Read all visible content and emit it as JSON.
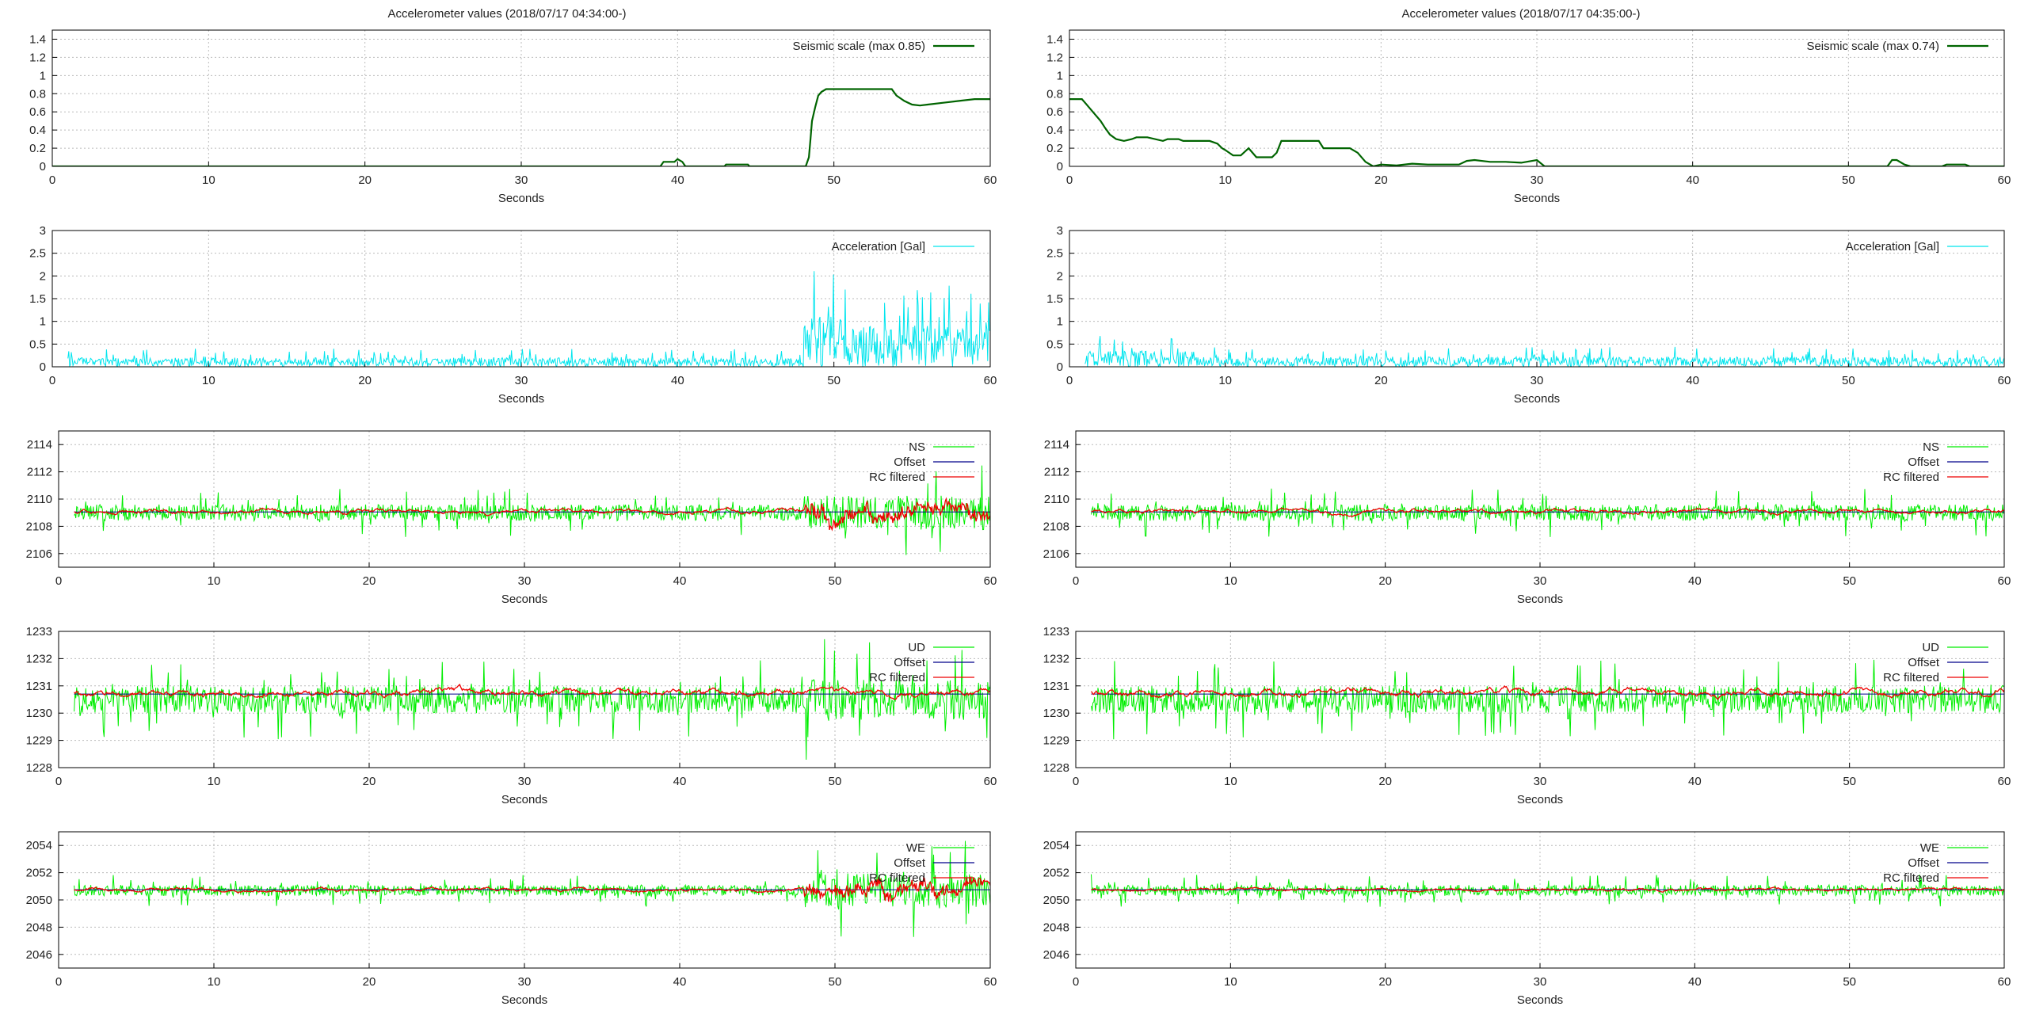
{
  "columns": [
    {
      "title": "Accelerometer values (2018/07/17 04:34:00-)"
    },
    {
      "title": "Accelerometer values (2018/07/17 04:35:00-)"
    }
  ],
  "chart_data": [
    {
      "type": "line",
      "column": 0,
      "panel": "seismic",
      "xlabel": "Seconds",
      "ylabel": "",
      "xlim": [
        0,
        60
      ],
      "ylim": [
        0,
        1.5
      ],
      "xticks": [
        "0",
        "10",
        "20",
        "30",
        "40",
        "50",
        "60"
      ],
      "yticks": [
        "0",
        "0.2",
        "0.4",
        "0.6",
        "0.8",
        "1",
        "1.2",
        "1.4"
      ],
      "grid": true,
      "legend_position": "top-right",
      "series": [
        {
          "name": "Seismic scale (max 0.85)",
          "color": "#006400",
          "x": [
            0,
            38.9,
            39.1,
            39.8,
            40,
            40.3,
            40.5,
            43,
            43.1,
            44.5,
            44.6,
            48.2,
            48.4,
            48.5,
            48.6,
            48.8,
            49,
            49.2,
            49.5,
            50,
            53.7,
            54,
            54.5,
            55,
            55.5,
            56,
            57,
            58,
            59,
            60
          ],
          "y": [
            0,
            0,
            0.05,
            0.05,
            0.08,
            0.05,
            0,
            0,
            0.02,
            0.02,
            0,
            0,
            0.1,
            0.3,
            0.5,
            0.65,
            0.78,
            0.82,
            0.85,
            0.85,
            0.85,
            0.78,
            0.72,
            0.68,
            0.67,
            0.68,
            0.7,
            0.72,
            0.74,
            0.74
          ]
        }
      ]
    },
    {
      "type": "line",
      "column": 0,
      "panel": "acceleration",
      "xlabel": "Seconds",
      "ylabel": "",
      "xlim": [
        0,
        60
      ],
      "ylim": [
        0,
        3
      ],
      "xticks": [
        "0",
        "10",
        "20",
        "30",
        "40",
        "50",
        "60"
      ],
      "yticks": [
        "0",
        "0.5",
        "1",
        "1.5",
        "2",
        "2.5",
        "3"
      ],
      "grid": true,
      "legend_position": "top-right",
      "series": [
        {
          "name": "Acceleration [Gal]",
          "color": "#00e5ee",
          "x_start": 1,
          "x_end": 60,
          "base": 0.15,
          "noise": 0.2,
          "seed": 11,
          "bursts": [
            {
              "from": 48,
              "to": 50.5,
              "amp": 1.1
            },
            {
              "from": 50.5,
              "to": 60,
              "amp": 0.9
            }
          ]
        }
      ]
    },
    {
      "type": "line",
      "column": 0,
      "panel": "NS",
      "xlabel": "Seconds",
      "ylabel": "",
      "xlim": [
        0,
        60
      ],
      "ylim": [
        2105,
        2115
      ],
      "xticks": [
        "0",
        "10",
        "20",
        "30",
        "40",
        "50",
        "60"
      ],
      "yticks": [
        "2106",
        "2108",
        "2110",
        "2112",
        "2114"
      ],
      "grid": true,
      "legend_position": "top-right",
      "series": [
        {
          "name": "NS",
          "color": "#00ee00",
          "x_start": 1,
          "x_end": 60,
          "base": 2109,
          "noise": 1.2,
          "seed": 21,
          "bursts": [
            {
              "from": 48,
              "to": 60,
              "amp": 2.5
            }
          ]
        },
        {
          "name": "Offset",
          "color": "#00008b",
          "constant": 2109.05
        },
        {
          "name": "RC filtered",
          "color": "#ee0000",
          "x_start": 1,
          "x_end": 60,
          "base": 2109.1,
          "noise": 0.25,
          "seed": 22,
          "bursts": [
            {
              "from": 48,
              "to": 60,
              "amp": 0.8
            }
          ]
        }
      ]
    },
    {
      "type": "line",
      "column": 0,
      "panel": "UD",
      "xlabel": "Seconds",
      "ylabel": "",
      "xlim": [
        0,
        60
      ],
      "ylim": [
        1228,
        1233
      ],
      "xticks": [
        "0",
        "10",
        "20",
        "30",
        "40",
        "50",
        "60"
      ],
      "yticks": [
        "1228",
        "1229",
        "1230",
        "1231",
        "1232",
        "1233"
      ],
      "grid": true,
      "legend_position": "top-right",
      "series": [
        {
          "name": "UD",
          "color": "#00ee00",
          "x_start": 1,
          "x_end": 60,
          "base": 1230.5,
          "noise": 1.0,
          "seed": 31,
          "bursts": [
            {
              "from": 48,
              "to": 60,
              "amp": 1.5
            }
          ]
        },
        {
          "name": "Offset",
          "color": "#00008b",
          "constant": 1230.7
        },
        {
          "name": "RC filtered",
          "color": "#ee0000",
          "x_start": 1,
          "x_end": 60,
          "base": 1230.75,
          "noise": 0.18,
          "seed": 32,
          "bursts": []
        }
      ]
    },
    {
      "type": "line",
      "column": 0,
      "panel": "WE",
      "xlabel": "Seconds",
      "ylabel": "",
      "xlim": [
        0,
        60
      ],
      "ylim": [
        2045,
        2055
      ],
      "xticks": [
        "0",
        "10",
        "20",
        "30",
        "40",
        "50",
        "60"
      ],
      "yticks": [
        "2046",
        "2048",
        "2050",
        "2052",
        "2054"
      ],
      "grid": true,
      "legend_position": "top-right",
      "series": [
        {
          "name": "WE",
          "color": "#00ee00",
          "x_start": 1,
          "x_end": 60,
          "base": 2050.7,
          "noise": 0.8,
          "seed": 41,
          "bursts": [
            {
              "from": 48,
              "to": 60,
              "amp": 2.5
            }
          ]
        },
        {
          "name": "Offset",
          "color": "#00008b",
          "constant": 2050.75
        },
        {
          "name": "RC filtered",
          "color": "#ee0000",
          "x_start": 1,
          "x_end": 60,
          "base": 2050.75,
          "noise": 0.2,
          "seed": 42,
          "bursts": [
            {
              "from": 48,
              "to": 60,
              "amp": 0.7
            }
          ]
        }
      ]
    },
    {
      "type": "line",
      "column": 1,
      "panel": "seismic",
      "xlabel": "Seconds",
      "ylabel": "",
      "xlim": [
        0,
        60
      ],
      "ylim": [
        0,
        1.5
      ],
      "xticks": [
        "0",
        "10",
        "20",
        "30",
        "40",
        "50",
        "60"
      ],
      "yticks": [
        "0",
        "0.2",
        "0.4",
        "0.6",
        "0.8",
        "1",
        "1.2",
        "1.4"
      ],
      "grid": true,
      "legend_position": "top-right",
      "series": [
        {
          "name": "Seismic scale (max 0.74)",
          "color": "#006400",
          "x": [
            0,
            0.8,
            1,
            1.5,
            2,
            2.3,
            2.6,
            3,
            3.5,
            4,
            4.3,
            5,
            6,
            6.3,
            7,
            7.3,
            8,
            9,
            9.5,
            9.8,
            10,
            10.5,
            11,
            11.5,
            12,
            13,
            13.3,
            13.6,
            16,
            16.3,
            18,
            18.5,
            19,
            19.5,
            20,
            21,
            22,
            23,
            25,
            25.5,
            26,
            27,
            28,
            29,
            30,
            30.5,
            52.5,
            52.8,
            53.1,
            53.6,
            54,
            56,
            56.3,
            57.5,
            57.8,
            60
          ],
          "y": [
            0.74,
            0.74,
            0.7,
            0.6,
            0.5,
            0.42,
            0.35,
            0.3,
            0.28,
            0.3,
            0.32,
            0.32,
            0.28,
            0.3,
            0.3,
            0.28,
            0.28,
            0.28,
            0.25,
            0.2,
            0.18,
            0.12,
            0.12,
            0.2,
            0.1,
            0.1,
            0.15,
            0.28,
            0.28,
            0.2,
            0.2,
            0.15,
            0.05,
            0,
            0.02,
            0.01,
            0.03,
            0.02,
            0.02,
            0.06,
            0.07,
            0.05,
            0.05,
            0.04,
            0.07,
            0,
            0,
            0.07,
            0.07,
            0.02,
            0,
            0,
            0.02,
            0.02,
            0,
            0
          ]
        }
      ]
    },
    {
      "type": "line",
      "column": 1,
      "panel": "acceleration",
      "xlabel": "Seconds",
      "ylabel": "",
      "xlim": [
        0,
        60
      ],
      "ylim": [
        0,
        3
      ],
      "xticks": [
        "0",
        "10",
        "20",
        "30",
        "40",
        "50",
        "60"
      ],
      "yticks": [
        "0",
        "0.5",
        "1",
        "1.5",
        "2",
        "2.5",
        "3"
      ],
      "grid": true,
      "legend_position": "top-right",
      "series": [
        {
          "name": "Acceleration [Gal]",
          "color": "#00e5ee",
          "x_start": 1,
          "x_end": 60,
          "base": 0.18,
          "noise": 0.22,
          "seed": 51,
          "bursts": [
            {
              "from": 1,
              "to": 8,
              "amp": 0.35
            }
          ]
        }
      ]
    },
    {
      "type": "line",
      "column": 1,
      "panel": "NS",
      "xlabel": "Seconds",
      "ylabel": "",
      "xlim": [
        0,
        60
      ],
      "ylim": [
        2105,
        2115
      ],
      "xticks": [
        "0",
        "10",
        "20",
        "30",
        "40",
        "50",
        "60"
      ],
      "yticks": [
        "2106",
        "2108",
        "2110",
        "2112",
        "2114"
      ],
      "grid": true,
      "legend_position": "top-right",
      "series": [
        {
          "name": "NS",
          "color": "#00ee00",
          "x_start": 1,
          "x_end": 60,
          "base": 2109,
          "noise": 1.2,
          "seed": 61,
          "bursts": []
        },
        {
          "name": "Offset",
          "color": "#00008b",
          "constant": 2109.05
        },
        {
          "name": "RC filtered",
          "color": "#ee0000",
          "x_start": 1,
          "x_end": 60,
          "base": 2109.1,
          "noise": 0.22,
          "seed": 62,
          "bursts": []
        }
      ]
    },
    {
      "type": "line",
      "column": 1,
      "panel": "UD",
      "xlabel": "Seconds",
      "ylabel": "",
      "xlim": [
        0,
        60
      ],
      "ylim": [
        1228,
        1233
      ],
      "xticks": [
        "0",
        "10",
        "20",
        "30",
        "40",
        "50",
        "60"
      ],
      "yticks": [
        "1228",
        "1229",
        "1230",
        "1231",
        "1232",
        "1233"
      ],
      "grid": true,
      "legend_position": "top-right",
      "series": [
        {
          "name": "UD",
          "color": "#00ee00",
          "x_start": 1,
          "x_end": 60,
          "base": 1230.5,
          "noise": 1.0,
          "seed": 71,
          "bursts": []
        },
        {
          "name": "Offset",
          "color": "#00008b",
          "constant": 1230.7
        },
        {
          "name": "RC filtered",
          "color": "#ee0000",
          "x_start": 1,
          "x_end": 60,
          "base": 1230.75,
          "noise": 0.18,
          "seed": 72,
          "bursts": []
        }
      ]
    },
    {
      "type": "line",
      "column": 1,
      "panel": "WE",
      "xlabel": "Seconds",
      "ylabel": "",
      "xlim": [
        0,
        60
      ],
      "ylim": [
        2045,
        2055
      ],
      "xticks": [
        "0",
        "10",
        "20",
        "30",
        "40",
        "50",
        "60"
      ],
      "yticks": [
        "2046",
        "2048",
        "2050",
        "2052",
        "2054"
      ],
      "grid": true,
      "legend_position": "top-right",
      "series": [
        {
          "name": "WE",
          "color": "#00ee00",
          "x_start": 1,
          "x_end": 60,
          "base": 2050.7,
          "noise": 0.8,
          "seed": 81,
          "bursts": []
        },
        {
          "name": "Offset",
          "color": "#00008b",
          "constant": 2050.75
        },
        {
          "name": "RC filtered",
          "color": "#ee0000",
          "x_start": 1,
          "x_end": 60,
          "base": 2050.75,
          "noise": 0.15,
          "seed": 82,
          "bursts": []
        }
      ]
    }
  ]
}
